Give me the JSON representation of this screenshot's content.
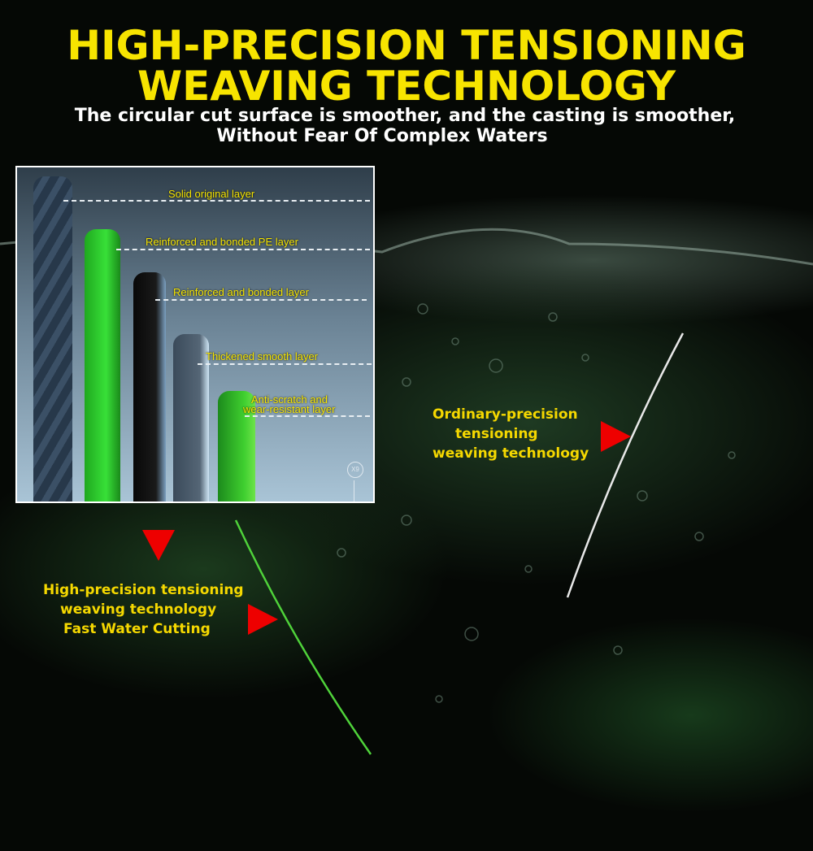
{
  "header": {
    "title_line1": "HIGH-PRECISION TENSIONING",
    "title_line2": "WEAVING TECHNOLOGY",
    "subtitle_line1": "The circular cut surface is smoother, and the casting is smoother,",
    "subtitle_line2": "Without Fear Of Complex Waters"
  },
  "inset": {
    "layers": [
      "Solid original layer",
      "Reinforced and bonded PE layer",
      "Reinforced and bonded  layer",
      "Thickened smooth layer",
      "Anti-scratch and",
      "wear-resistant layer"
    ],
    "badge": "X9"
  },
  "ordinary": {
    "line1": "Ordinary-precision",
    "line2": "tensioning",
    "line3": "weaving technology"
  },
  "high": {
    "line1": "High-precision tensioning",
    "line2": "weaving technology",
    "line3": "Fast Water Cutting"
  },
  "colors": {
    "title": "#f7e400",
    "arrow": "#ee0000",
    "green_line": "#4fd23a",
    "white_line": "#e8e8e8"
  }
}
